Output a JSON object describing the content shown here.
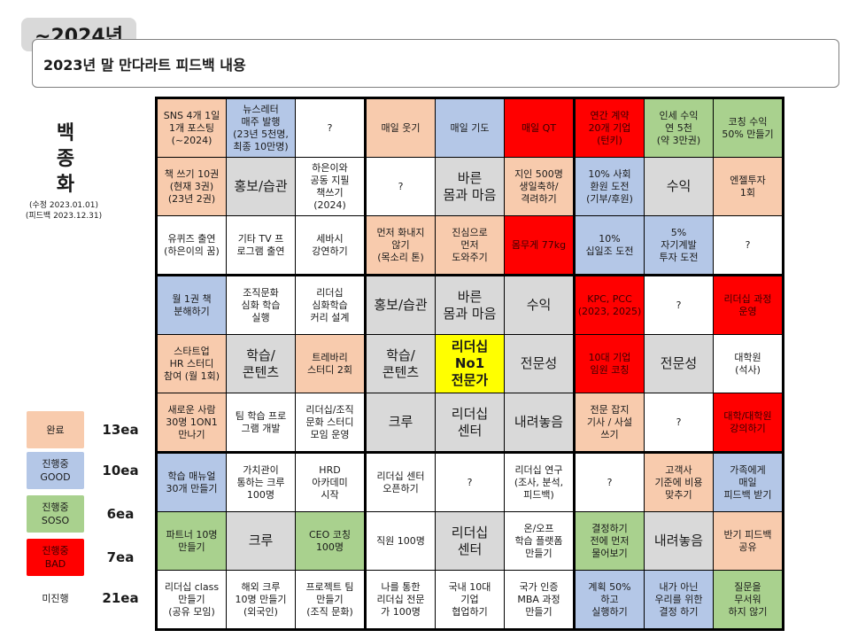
{
  "year_badge": "~2024년",
  "header": "2023년 말 만다라트 피드백 내용",
  "side_title": "백\n종\n화",
  "side_note": "(수정 2023.01.01)\n(피드백 2023.12.31)",
  "colors": {
    "done": "#f8cbad",
    "good": "#b4c7e7",
    "soso": "#a9d18e",
    "bad": "#ff0000",
    "none": "#ffffff",
    "center": "#d9d9d9",
    "core": "#ffff00"
  },
  "legend": [
    {
      "status": "done",
      "label": "완료",
      "count": "13ea"
    },
    {
      "status": "good",
      "label": "진행중\nGOOD",
      "count": "10ea"
    },
    {
      "status": "soso",
      "label": "진행중\nSOSO",
      "count": "6ea"
    },
    {
      "status": "bad",
      "label": "진행중\nBAD",
      "count": "7ea"
    },
    {
      "status": "none",
      "label": "미진행",
      "count": "21ea"
    }
  ],
  "blocks": [
    {
      "cells": [
        {
          "text": "SNS 4개 1일\n1개 포스팅\n(~2024)",
          "status": "done"
        },
        {
          "text": "뉴스레터\n매주 발행\n(23년 5천명,\n최종 10만명)",
          "status": "good"
        },
        {
          "text": "?",
          "status": "none"
        },
        {
          "text": "책 쓰기 10권\n(현재 3권)\n(23년 2권)",
          "status": "done"
        },
        {
          "text": "홍보/습관",
          "status": "center"
        },
        {
          "text": "하은이와\n공동 지필\n책쓰기\n(2024)",
          "status": "none"
        },
        {
          "text": "유퀴즈 출연\n(하은이의 꿈)",
          "status": "none"
        },
        {
          "text": "기타 TV 프\n로그램 출연",
          "status": "none"
        },
        {
          "text": "세바시\n강연하기",
          "status": "none"
        }
      ]
    },
    {
      "cells": [
        {
          "text": "매일 웃기",
          "status": "done"
        },
        {
          "text": "매일 기도",
          "status": "good"
        },
        {
          "text": "매일 QT",
          "status": "bad"
        },
        {
          "text": "?",
          "status": "none"
        },
        {
          "text": "바른\n몸과 마음",
          "status": "center"
        },
        {
          "text": "지인 500명\n생일축하/\n격려하기",
          "status": "done"
        },
        {
          "text": "먼저 화내지\n않기\n(목소리 톤)",
          "status": "done"
        },
        {
          "text": "진심으로\n먼저\n도와주기",
          "status": "done"
        },
        {
          "text": "몸무게 77kg",
          "status": "bad"
        }
      ]
    },
    {
      "cells": [
        {
          "text": "연간 계약\n20개 기업\n(턴키)",
          "status": "bad"
        },
        {
          "text": "인세 수익\n연 5천\n(약 3만권)",
          "status": "soso"
        },
        {
          "text": "코칭 수익\n50% 만들기",
          "status": "soso"
        },
        {
          "text": "10% 사회\n환원 도전\n(기부/후원)",
          "status": "good"
        },
        {
          "text": "수익",
          "status": "center"
        },
        {
          "text": "엔젤투자\n1회",
          "status": "done"
        },
        {
          "text": "10%\n십일조 도전",
          "status": "good"
        },
        {
          "text": "5%\n자기계발\n투자 도전",
          "status": "good"
        },
        {
          "text": "?",
          "status": "none"
        }
      ]
    },
    {
      "cells": [
        {
          "text": "월 1권 책\n분해하기",
          "status": "good"
        },
        {
          "text": "조직문화\n심화 학습\n실행",
          "status": "none"
        },
        {
          "text": "리더십\n심화학습\n커리 설계",
          "status": "none"
        },
        {
          "text": "스타트업\nHR 스터디\n참여 (월 1회)",
          "status": "done"
        },
        {
          "text": "학습/\n콘텐츠",
          "status": "center"
        },
        {
          "text": "트레바리\n스터디 2회",
          "status": "done"
        },
        {
          "text": "새로운 사람\n30명 1ON1\n만나기",
          "status": "done"
        },
        {
          "text": "팀 학습 프로\n그램 개발",
          "status": "none"
        },
        {
          "text": "리더십/조직\n문화 스터디\n모임 운영",
          "status": "none"
        }
      ]
    },
    {
      "cells": [
        {
          "text": "홍보/습관",
          "status": "center"
        },
        {
          "text": "바른\n몸과 마음",
          "status": "center"
        },
        {
          "text": "수익",
          "status": "center"
        },
        {
          "text": "학습/\n콘텐츠",
          "status": "center"
        },
        {
          "text": "리더십\nNo1\n전문가",
          "status": "core"
        },
        {
          "text": "전문성",
          "status": "center"
        },
        {
          "text": "크루",
          "status": "center"
        },
        {
          "text": "리더십\n센터",
          "status": "center"
        },
        {
          "text": "내려놓음",
          "status": "center"
        }
      ]
    },
    {
      "cells": [
        {
          "text": "KPC, PCC\n(2023, 2025)",
          "status": "bad"
        },
        {
          "text": "?",
          "status": "none"
        },
        {
          "text": "리더십 과정\n운영",
          "status": "bad"
        },
        {
          "text": "10대 기업\n임원 코칭",
          "status": "bad"
        },
        {
          "text": "전문성",
          "status": "center"
        },
        {
          "text": "대학원\n(석사)",
          "status": "none"
        },
        {
          "text": "전문 잡지\n기사 / 사설\n쓰기",
          "status": "done"
        },
        {
          "text": "?",
          "status": "none"
        },
        {
          "text": "대학/대학원\n강의하기",
          "status": "bad"
        }
      ]
    },
    {
      "cells": [
        {
          "text": "학습 매뉴얼\n30개 만들기",
          "status": "good"
        },
        {
          "text": "가치관이\n통하는 크루\n100명",
          "status": "none"
        },
        {
          "text": "HRD\n아카데미\n시작",
          "status": "none"
        },
        {
          "text": "파트너 10명\n만들기",
          "status": "soso"
        },
        {
          "text": "크루",
          "status": "center"
        },
        {
          "text": "CEO 코칭\n100명",
          "status": "soso"
        },
        {
          "text": "리더십 class\n만들기\n(공유 모임)",
          "status": "none"
        },
        {
          "text": "해외 크루\n10명 만들기\n(외국인)",
          "status": "none"
        },
        {
          "text": "프로젝트 팀\n만들기\n(조직 문화)",
          "status": "none"
        }
      ]
    },
    {
      "cells": [
        {
          "text": "리더십 센터\n오픈하기",
          "status": "none"
        },
        {
          "text": "?",
          "status": "none"
        },
        {
          "text": "리더십 연구\n(조사, 분석,\n피드백)",
          "status": "none"
        },
        {
          "text": "직원 100명",
          "status": "none"
        },
        {
          "text": "리더십\n센터",
          "status": "center"
        },
        {
          "text": "온/오프\n학습 플랫폼\n만들기",
          "status": "none"
        },
        {
          "text": "나를 통한\n리더십 전문\n가 100명",
          "status": "none"
        },
        {
          "text": "국내 10대\n기업\n협업하기",
          "status": "none"
        },
        {
          "text": "국가 인증\nMBA 과정\n만들기",
          "status": "none"
        }
      ]
    },
    {
      "cells": [
        {
          "text": "?",
          "status": "none"
        },
        {
          "text": "고객사\n기준에 비용\n맞추기",
          "status": "done"
        },
        {
          "text": "가족에게\n매일\n피드백 받기",
          "status": "good"
        },
        {
          "text": "결정하기\n전에 먼저\n물어보기",
          "status": "soso"
        },
        {
          "text": "내려놓음",
          "status": "center"
        },
        {
          "text": "반기 피드백\n공유",
          "status": "done"
        },
        {
          "text": "계획 50%\n하고\n실행하기",
          "status": "good"
        },
        {
          "text": "내가 아닌\n우리를 위한\n결정 하기",
          "status": "good"
        },
        {
          "text": "질문을\n무서워\n하지 않기",
          "status": "soso"
        }
      ]
    }
  ]
}
